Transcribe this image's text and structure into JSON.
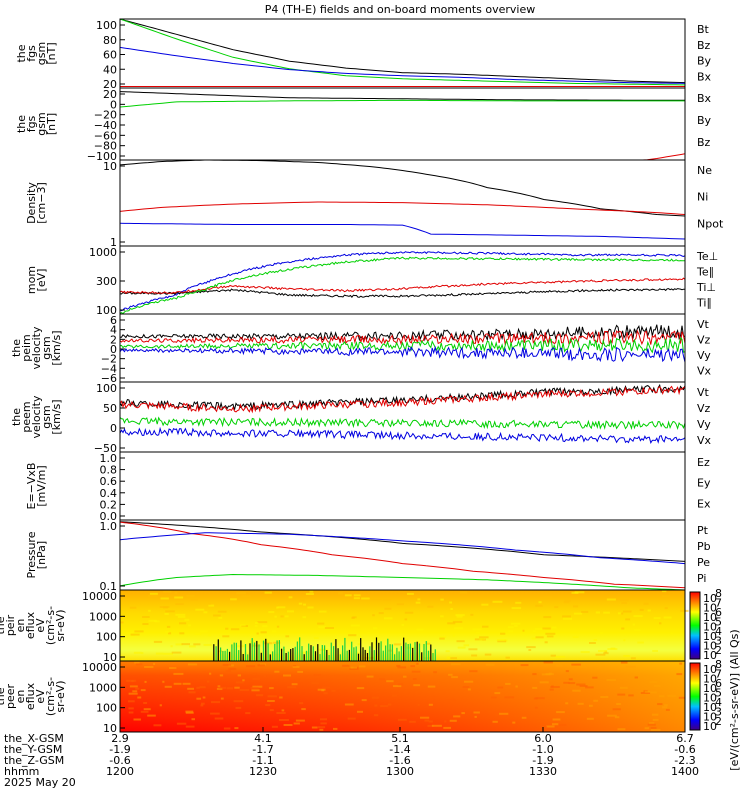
{
  "title": "P4 (TH-E) fields and on-board moments overview",
  "date_label": "2025 May 20",
  "colors": {
    "black": "#000000",
    "red": "#e00000",
    "green": "#00d000",
    "blue": "#0000e0"
  },
  "time_axis": {
    "range": [
      1200,
      1400
    ],
    "rows": [
      {
        "label": "the_X-GSM",
        "values": [
          "2.9",
          "4.1",
          "5.1",
          "6.0",
          "6.7"
        ]
      },
      {
        "label": "the_Y-GSM",
        "values": [
          "-1.9",
          "-1.7",
          "-1.4",
          "-1.0",
          "-0.6"
        ]
      },
      {
        "label": "the_Z-GSM",
        "values": [
          "-0.6",
          "-1.1",
          "-1.6",
          "-1.9",
          "-2.3"
        ]
      },
      {
        "label": "hhmm",
        "values": [
          "1200",
          "1230",
          "1300",
          "1330",
          "1400"
        ]
      }
    ]
  },
  "colorbars": [
    {
      "ticks": [
        "10",
        "10",
        "10",
        "10",
        "10",
        "10",
        "10"
      ],
      "exps": [
        "8",
        "7",
        "6",
        "5",
        "4",
        "3",
        "2"
      ],
      "label": "[eV/(cm²-s-sr-eV)] (All Qs)"
    },
    {
      "ticks": [
        "10",
        "10",
        "10",
        "10",
        "10",
        "10",
        "10"
      ],
      "exps": [
        "8",
        "7",
        "6",
        "5",
        "4",
        "3",
        "2"
      ],
      "label": "[eV/(cm²-s-sr-eV)] (All Qs)"
    }
  ],
  "chart_data": [
    {
      "type": "line",
      "ylabel": [
        "the",
        "fgs",
        "gsm",
        "[nT]"
      ],
      "yticks": [
        "100",
        "80",
        "60",
        "40",
        "20"
      ],
      "ylim": [
        10,
        100
      ],
      "series": [
        {
          "name": "Bt",
          "color": "#000000",
          "x": [
            1200,
            1220,
            1240,
            1260,
            1280,
            1300,
            1320,
            1340,
            1360,
            1380,
            1400
          ],
          "values": [
            100,
            80,
            60,
            45,
            36,
            30,
            28,
            25,
            22,
            19,
            17
          ]
        },
        {
          "name": "Bz",
          "color": "#e00000",
          "x": [
            1200,
            1400
          ],
          "values": [
            12,
            12
          ]
        },
        {
          "name": "By",
          "color": "#00d000",
          "x": [
            1200,
            1220,
            1240,
            1260,
            1280,
            1300,
            1320,
            1340,
            1360,
            1380,
            1400
          ],
          "values": [
            100,
            74,
            50,
            35,
            26,
            22,
            20,
            18,
            16,
            15,
            14
          ]
        },
        {
          "name": "Bx",
          "color": "#0000e0",
          "x": [
            1200,
            1220,
            1240,
            1260,
            1280,
            1300,
            1320,
            1340,
            1360,
            1380,
            1400
          ],
          "values": [
            63,
            52,
            42,
            34,
            29,
            26,
            24,
            21,
            19,
            17,
            16
          ]
        }
      ]
    },
    {
      "type": "line",
      "ylabel": [
        "the",
        "fgs",
        "gsm",
        "[nT]"
      ],
      "yticks": [
        "20",
        "0",
        "−20",
        "−40",
        "−60",
        "−80",
        "−100"
      ],
      "ylim": [
        -115,
        25
      ],
      "series": [
        {
          "name": "Bx",
          "color": "#000000",
          "x": [
            1200,
            1260,
            1300,
            1340,
            1400
          ],
          "values": [
            18,
            6,
            4,
            2,
            1
          ]
        },
        {
          "name": "By",
          "color": "#00d000",
          "x": [
            1200,
            1220,
            1260,
            1300,
            1340,
            1400
          ],
          "values": [
            -12,
            -2,
            0,
            1,
            0,
            0
          ]
        },
        {
          "name": "Bz",
          "color": "#e00000",
          "x": [
            1200,
            1380,
            1390,
            1400
          ],
          "values": [
            -120,
            -120,
            -112,
            -103
          ]
        }
      ]
    },
    {
      "type": "line",
      "log": true,
      "ylabel": [
        "Density",
        "[cm−3]"
      ],
      "yticks": [
        "10",
        "1"
      ],
      "ylim": [
        0.4,
        60
      ],
      "series": [
        {
          "name": "Ne",
          "color": "#000000",
          "x": [
            1200,
            1215,
            1230,
            1250,
            1270,
            1290,
            1310,
            1330,
            1350,
            1370,
            1390,
            1400
          ],
          "values": [
            45,
            55,
            60,
            58,
            52,
            40,
            25,
            12,
            6,
            3.5,
            2.5,
            2.3
          ]
        },
        {
          "name": "Ni",
          "color": "#e00000",
          "x": [
            1200,
            1215,
            1240,
            1270,
            1300,
            1330,
            1360,
            1390,
            1400
          ],
          "values": [
            3,
            3.8,
            4.6,
            5.2,
            5.0,
            4.4,
            3.5,
            2.8,
            2.5
          ]
        },
        {
          "name": "Npot",
          "color": "#0000e0",
          "x": [
            1200,
            1240,
            1280,
            1300,
            1310,
            1340,
            1370,
            1400
          ],
          "values": [
            1.5,
            1.4,
            1.4,
            1.35,
            0.8,
            0.75,
            0.7,
            0.6
          ]
        }
      ]
    },
    {
      "type": "line",
      "log": true,
      "ylabel": [
        "mom",
        "[eV]"
      ],
      "yticks": [
        "1000",
        "300",
        "100"
      ],
      "ylim": [
        100,
        5000
      ],
      "series": [
        {
          "name": "Te⊥",
          "color": "#0000e0",
          "x": [
            1200,
            1210,
            1220,
            1230,
            1240,
            1260,
            1280,
            1300,
            1330,
            1360,
            1400
          ],
          "values": [
            120,
            200,
            300,
            600,
            1000,
            2000,
            3000,
            3500,
            3300,
            3000,
            2900
          ]
        },
        {
          "name": "Te∥",
          "color": "#000000",
          "x": [
            1200,
            1220,
            1240,
            1260,
            1280,
            1300,
            1330,
            1360,
            1400
          ],
          "values": [
            330,
            330,
            400,
            300,
            280,
            280,
            320,
            380,
            420
          ]
        },
        {
          "name": "Ti⊥",
          "color": "#e00000",
          "x": [
            1200,
            1220,
            1240,
            1260,
            1280,
            1300,
            1330,
            1360,
            1400
          ],
          "values": [
            350,
            340,
            500,
            420,
            380,
            430,
            560,
            650,
            750
          ]
        },
        {
          "name": "Ti∥",
          "color": "#00d000",
          "x": [
            1200,
            1210,
            1220,
            1230,
            1240,
            1260,
            1280,
            1300,
            1330,
            1360,
            1400
          ],
          "values": [
            100,
            180,
            250,
            400,
            700,
            1300,
            2000,
            2500,
            2400,
            2300,
            2200
          ]
        }
      ]
    },
    {
      "type": "line",
      "ylabel": [
        "the",
        "peim",
        "velocity",
        "gsm",
        "[km/s]"
      ],
      "yticks": [
        "6",
        "4",
        "2",
        "0",
        "−2",
        "−4",
        "−6"
      ],
      "ylim": [
        -7,
        7
      ],
      "series": [
        {
          "name": "Vt",
          "color": "#000000",
          "x": [
            1200,
            1300,
            1400
          ],
          "values": [
            2.4,
            2.5,
            3.5
          ]
        },
        {
          "name": "Vz",
          "color": "#e00000",
          "x": [
            1200,
            1300,
            1400
          ],
          "values": [
            1.5,
            1.8,
            2.2
          ]
        },
        {
          "name": "Vy",
          "color": "#00d000",
          "x": [
            1200,
            1300,
            1400
          ],
          "values": [
            0.3,
            0.5,
            0.6
          ]
        },
        {
          "name": "Vx",
          "color": "#0000e0",
          "x": [
            1200,
            1300,
            1400
          ],
          "values": [
            -0.5,
            -0.8,
            -1.5
          ]
        }
      ]
    },
    {
      "type": "line",
      "ylabel": [
        "the",
        "peem",
        "velocity",
        "gsm",
        "[km/s]"
      ],
      "yticks": [
        "100",
        "50",
        "0",
        "−50"
      ],
      "ylim": [
        -60,
        110
      ],
      "series": [
        {
          "name": "Vt",
          "color": "#000000",
          "x": [
            1200,
            1240,
            1300,
            1350,
            1400
          ],
          "values": [
            60,
            50,
            65,
            85,
            95
          ]
        },
        {
          "name": "Vz",
          "color": "#e00000",
          "x": [
            1200,
            1240,
            1300,
            1350,
            1400
          ],
          "values": [
            55,
            45,
            60,
            80,
            92
          ]
        },
        {
          "name": "Vy",
          "color": "#00d000",
          "x": [
            1200,
            1300,
            1400
          ],
          "values": [
            15,
            10,
            5
          ]
        },
        {
          "name": "Vx",
          "color": "#0000e0",
          "x": [
            1200,
            1300,
            1400
          ],
          "values": [
            -10,
            -20,
            -30
          ]
        }
      ]
    },
    {
      "type": "line",
      "ylabel": [
        "E=−VxB",
        "[mV/m]"
      ],
      "yticks": [
        "1.0",
        "0.8",
        "0.6",
        "0.4",
        "0.2",
        "0.0"
      ],
      "ylim": [
        0,
        1
      ],
      "series": [
        {
          "name": "Ez",
          "color": "#e00000",
          "x": [],
          "values": []
        },
        {
          "name": "Ey",
          "color": "#00d000",
          "x": [],
          "values": []
        },
        {
          "name": "Ex",
          "color": "#0000e0",
          "x": [],
          "values": []
        }
      ]
    },
    {
      "type": "line",
      "log": true,
      "ylabel": [
        "Pressure",
        "[nPa]"
      ],
      "yticks": [
        "1.0",
        "0.1"
      ],
      "ylim": [
        0.07,
        5
      ],
      "series": [
        {
          "name": "Pt",
          "color": "#000000",
          "x": [
            1200,
            1250,
            1300,
            1350,
            1400
          ],
          "values": [
            4.5,
            2.4,
            1.2,
            0.6,
            0.4
          ]
        },
        {
          "name": "Pb",
          "color": "#e00000",
          "x": [
            1200,
            1225,
            1250,
            1275,
            1300,
            1325,
            1350,
            1375,
            1400
          ],
          "values": [
            4.4,
            2.2,
            1.1,
            0.6,
            0.35,
            0.22,
            0.15,
            0.1,
            0.08
          ]
        },
        {
          "name": "Pe",
          "color": "#00d000",
          "x": [
            1200,
            1220,
            1240,
            1270,
            1300,
            1330,
            1360,
            1380,
            1400
          ],
          "values": [
            0.09,
            0.15,
            0.18,
            0.17,
            0.15,
            0.13,
            0.1,
            0.08,
            0.07
          ]
        },
        {
          "name": "Pi",
          "color": "#0000e0",
          "x": [
            1200,
            1230,
            1260,
            1300,
            1340,
            1370,
            1400
          ],
          "values": [
            1.5,
            2.3,
            2.1,
            1.4,
            0.8,
            0.5,
            0.35
          ]
        }
      ]
    },
    {
      "type": "heatmap",
      "ylabel": [
        "the",
        "peir",
        "en",
        "eflux",
        "eV",
        "(cm²-s-",
        "sr-eV)"
      ],
      "yticks": [
        "10000",
        "1000",
        "100",
        "10"
      ],
      "ylim": [
        5,
        20000
      ]
    },
    {
      "type": "heatmap",
      "ylabel": [
        "the",
        "peer",
        "en",
        "eflux",
        "eV",
        "(cm²-s-",
        "sr-eV)"
      ],
      "yticks": [
        "10000",
        "1000",
        "100",
        "10"
      ],
      "ylim": [
        5,
        20000
      ]
    }
  ]
}
